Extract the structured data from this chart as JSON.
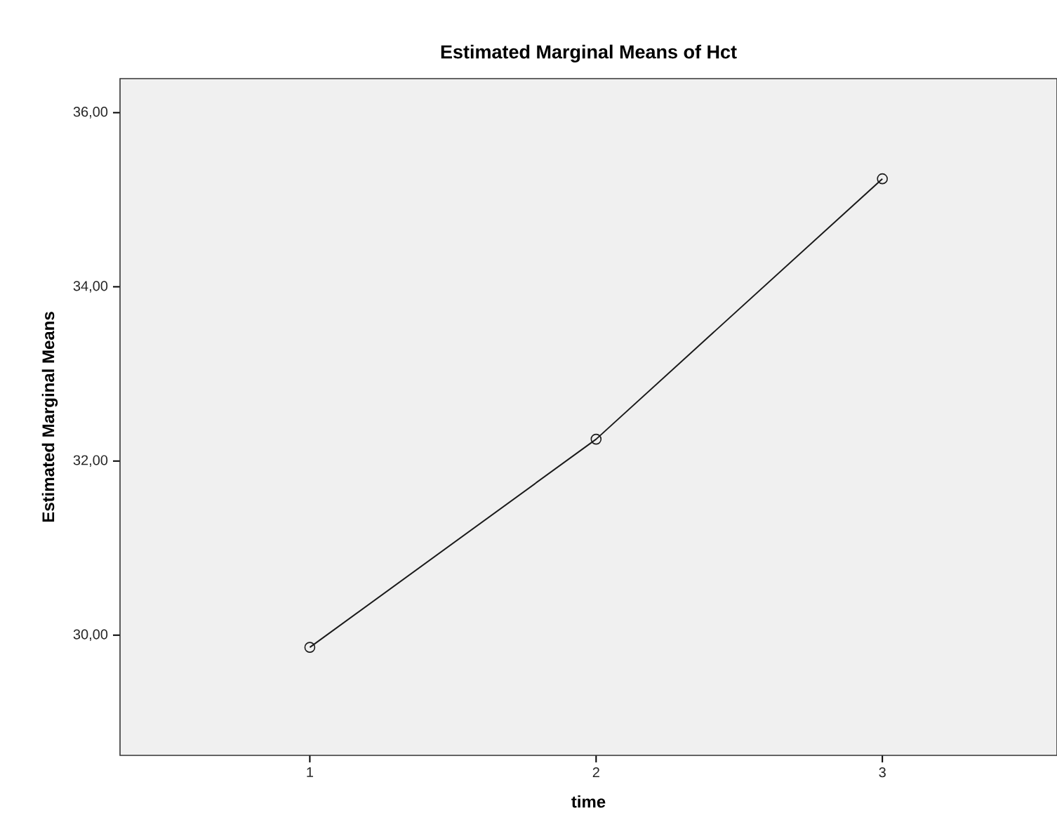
{
  "chart_data": {
    "type": "line",
    "title": "Estimated Marginal Means of Hct",
    "xlabel": "time",
    "ylabel": "Estimated Marginal Means",
    "categories": [
      "1",
      "2",
      "3"
    ],
    "values": [
      29.86,
      32.25,
      35.24
    ],
    "color": "#1a1a1a",
    "marker": "circle",
    "ylim": [
      28.62,
      36.39
    ],
    "yticks": [
      {
        "value": 30,
        "label": "30,00"
      },
      {
        "value": 32,
        "label": "32,00"
      },
      {
        "value": 34,
        "label": "34,00"
      },
      {
        "value": 36,
        "label": "36,00"
      }
    ]
  }
}
